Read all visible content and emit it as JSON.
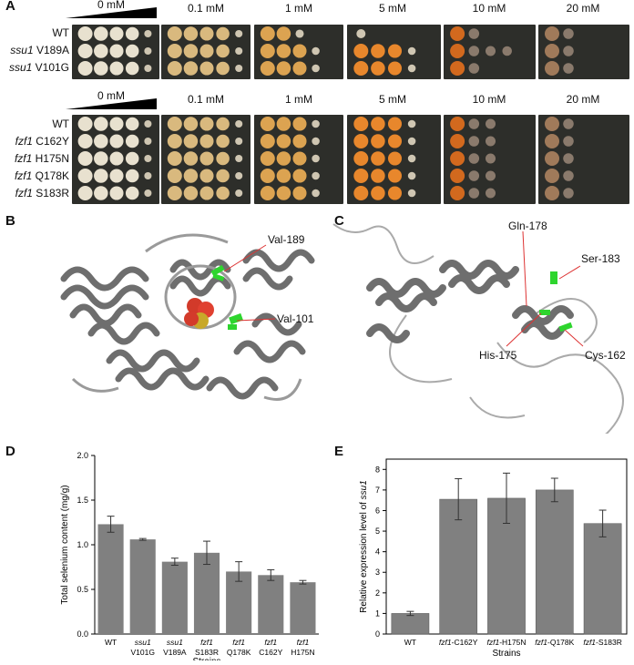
{
  "panels": {
    "a": "A",
    "b": "B",
    "c": "C",
    "d": "D",
    "e": "E"
  },
  "panel_a": {
    "concentrations": [
      "0 mM",
      "0.1 mM",
      "1 mM",
      "5 mM",
      "10 mM",
      "20 mM"
    ],
    "block1_strains": [
      {
        "gene": "",
        "label": "WT"
      },
      {
        "gene": "ssu1",
        "label": "V189A"
      },
      {
        "gene": "ssu1",
        "label": "V101G"
      }
    ],
    "block2_strains": [
      {
        "gene": "",
        "label": "WT"
      },
      {
        "gene": "fzf1",
        "label": "C162Y"
      },
      {
        "gene": "fzf1",
        "label": "H175N"
      },
      {
        "gene": "fzf1",
        "label": "Q178K"
      },
      {
        "gene": "fzf1",
        "label": "S183R"
      }
    ],
    "colors": {
      "plate_bg": "#2d2e2a",
      "cream": "#e8e1cf",
      "tan": "#d9b97e",
      "orange": "#e8872c",
      "dark_orange": "#d2691e",
      "faint": "#7a6a5c"
    }
  },
  "panel_b": {
    "annotations": [
      "Val-189",
      "Val-101"
    ]
  },
  "panel_c": {
    "annotations": [
      "Gln-178",
      "Ser-183",
      "His-175",
      "Cys-162"
    ]
  },
  "chart_data": [
    {
      "type": "bar",
      "ylabel": "Total selenium content (mg/g)",
      "xlabel": "Strains",
      "ylim": [
        0.0,
        2.0
      ],
      "yticks": [
        "0.0",
        "0.5",
        "1.0",
        "1.5",
        "2.0"
      ],
      "categories": [
        {
          "line1": "WT",
          "line2": ""
        },
        {
          "line1": "ssu1",
          "line2": "V101G"
        },
        {
          "line1": "ssu1",
          "line2": "V189A"
        },
        {
          "line1": "fzf1",
          "line2": "S183R"
        },
        {
          "line1": "fzf1",
          "line2": "Q178K"
        },
        {
          "line1": "fzf1",
          "line2": "C162Y"
        },
        {
          "line1": "fzf1",
          "line2": "H175N"
        }
      ],
      "values": [
        1.23,
        1.06,
        0.81,
        0.91,
        0.7,
        0.66,
        0.58
      ],
      "errors": [
        0.09,
        0.01,
        0.04,
        0.13,
        0.11,
        0.06,
        0.02
      ],
      "bar_color": "#808080"
    },
    {
      "type": "bar",
      "ylabel_prefix": "Relative expression level of ",
      "ylabel_gene": "ssu1",
      "xlabel": "Strains",
      "ylim": [
        0,
        8.5
      ],
      "yticks": [
        "0",
        "1",
        "2",
        "3",
        "4",
        "5",
        "6",
        "7",
        "8"
      ],
      "categories": [
        {
          "gene": "",
          "label": "WT"
        },
        {
          "gene": "fzf1",
          "label": "-C162Y"
        },
        {
          "gene": "fzf1",
          "label": "-H175N"
        },
        {
          "gene": "fzf1",
          "label": "-Q178K"
        },
        {
          "gene": "fzf1",
          "label": "-S183R"
        }
      ],
      "values": [
        1.0,
        6.55,
        6.6,
        7.0,
        5.37
      ],
      "errors": [
        0.1,
        1.0,
        1.22,
        0.57,
        0.65
      ],
      "bar_color": "#808080"
    }
  ]
}
